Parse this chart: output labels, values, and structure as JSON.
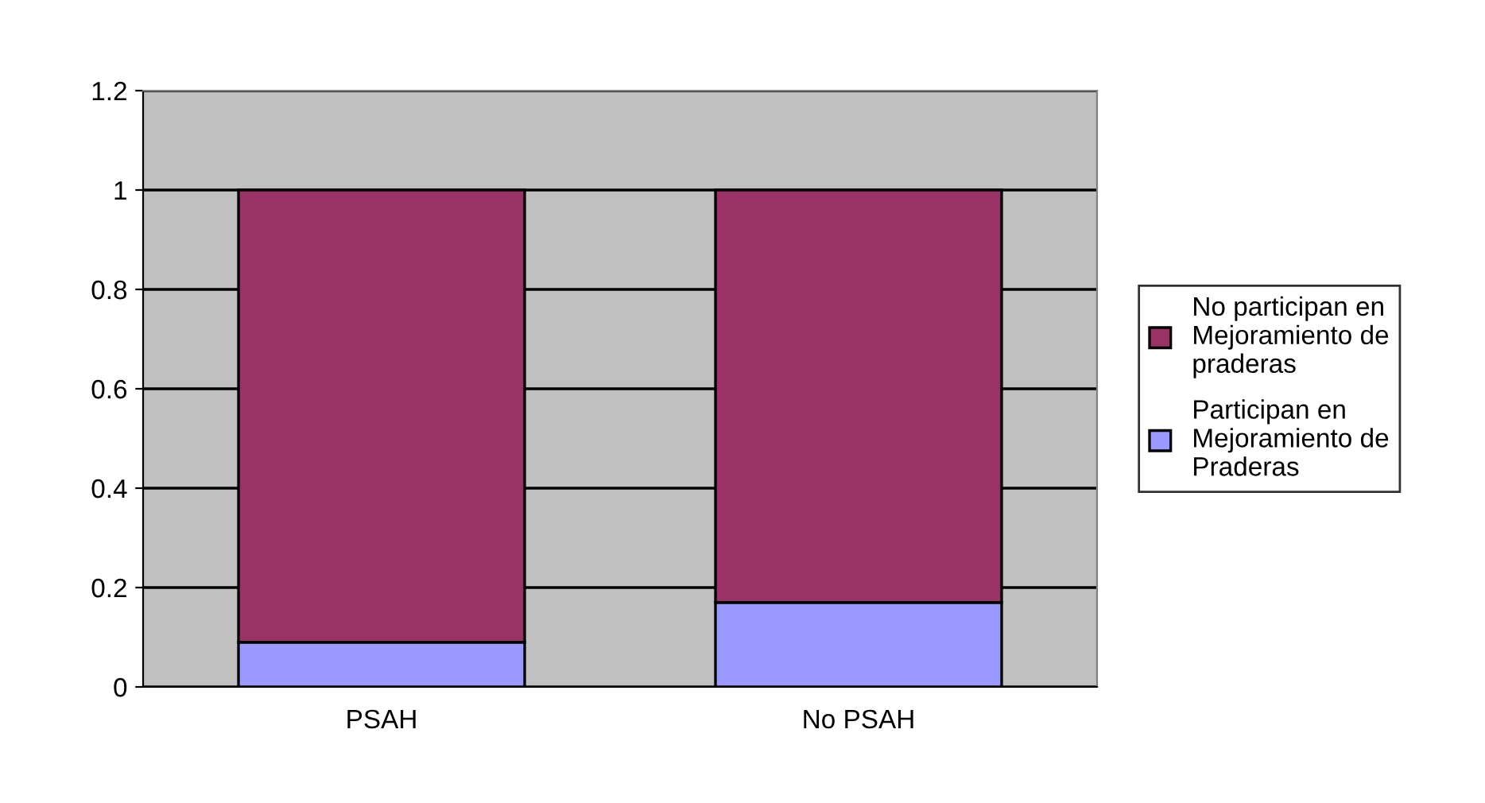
{
  "chart_data": {
    "type": "bar",
    "stacked": true,
    "categories": [
      "PSAH",
      "No PSAH"
    ],
    "series": [
      {
        "name": "Participan en Mejoramiento de Praderas",
        "color": "#9999ff",
        "values": [
          0.09,
          0.17
        ]
      },
      {
        "name": "No participan en Mejoramiento de praderas",
        "color": "#993366",
        "values": [
          0.91,
          0.83
        ]
      }
    ],
    "ylim": [
      0,
      1.2
    ],
    "yticks": [
      0,
      0.2,
      0.4,
      0.6,
      0.8,
      1,
      1.2
    ],
    "grid": "y",
    "legend": "right"
  }
}
